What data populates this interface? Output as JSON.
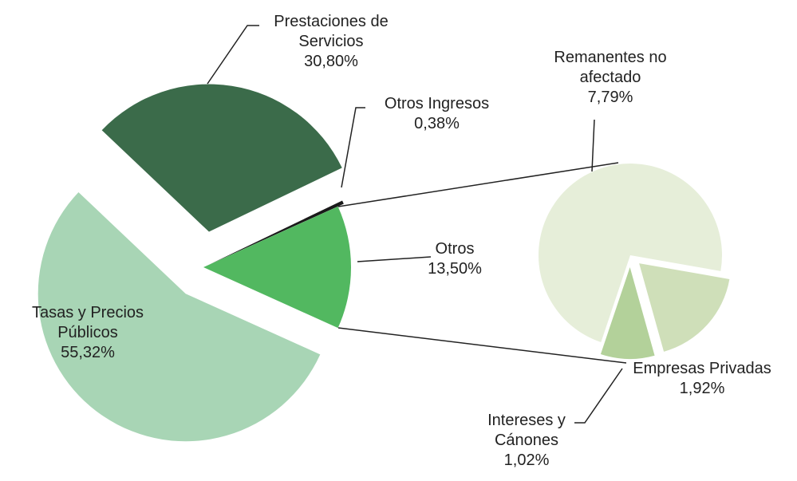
{
  "chart_data": [
    {
      "type": "pie",
      "categories": [
        "Tasas y Precios Públicos",
        "Prestaciones de Servicios",
        "Otros Ingresos",
        "Otros"
      ],
      "values": [
        55.32,
        30.8,
        0.38,
        13.5
      ],
      "value_labels": [
        "55,32%",
        "30,80%",
        "0,38%",
        "13,50%"
      ],
      "colors": [
        "#a8d5b5",
        "#3b6b4a",
        "#1a1a1a",
        "#52b860"
      ]
    },
    {
      "type": "pie",
      "categories": [
        "Remanentes no afectado",
        "Empresas Privadas",
        "Intereses y Cánones"
      ],
      "values": [
        7.79,
        1.92,
        1.02
      ],
      "value_labels": [
        "7,79%",
        "1,92%",
        "1,02%"
      ],
      "colors": [
        "#e6eed9",
        "#cfdfb9",
        "#b3d19a"
      ]
    }
  ]
}
